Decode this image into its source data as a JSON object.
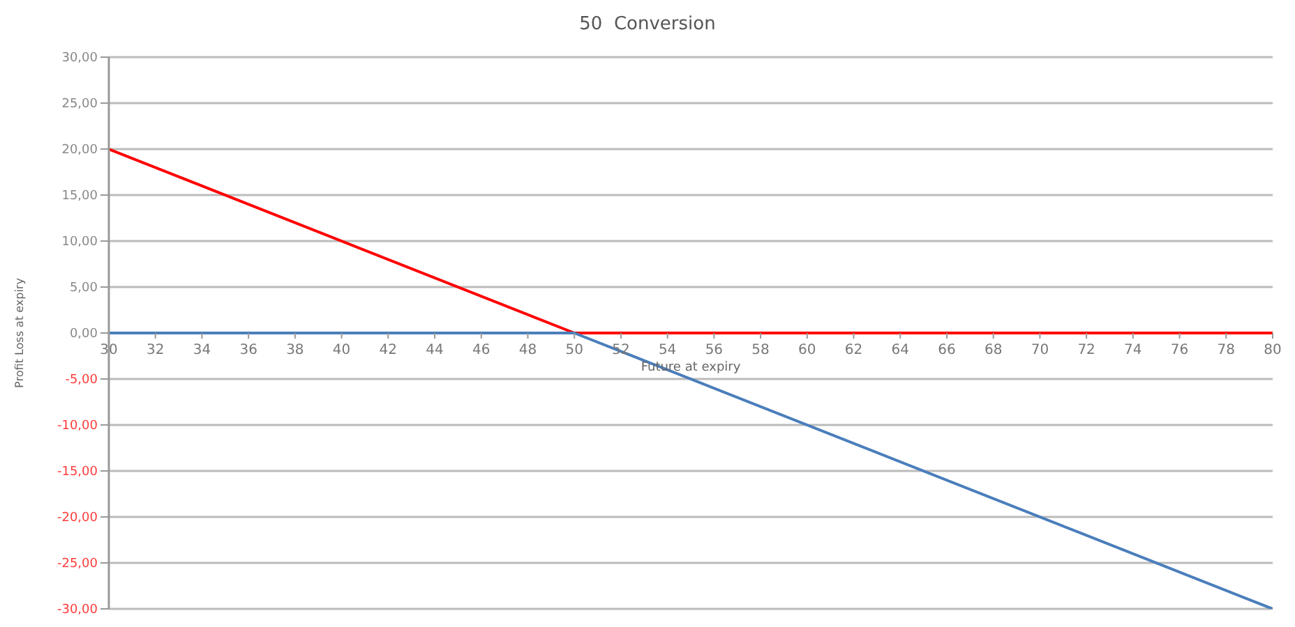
{
  "chart_data": {
    "type": "line",
    "title": "50  Conversion",
    "xlabel": "Future at expiry",
    "ylabel": "Profit Loss at expiry",
    "series": [
      {
        "color": "#ff0000",
        "x": [
          30,
          50,
          80
        ],
        "values": [
          20,
          0,
          0
        ]
      },
      {
        "color": "#4a7ebb",
        "x": [
          30,
          50,
          80
        ],
        "values": [
          0,
          0,
          -30
        ]
      }
    ],
    "xlim": [
      30,
      80
    ],
    "xticks": [
      30,
      32,
      34,
      36,
      38,
      40,
      42,
      44,
      46,
      48,
      50,
      52,
      54,
      56,
      58,
      60,
      62,
      64,
      66,
      68,
      70,
      72,
      74,
      76,
      78,
      80
    ],
    "ylim": [
      -30,
      30
    ],
    "yticks": [
      {
        "value": -30,
        "label": "-30,00"
      },
      {
        "value": -25,
        "label": "-25,00"
      },
      {
        "value": -20,
        "label": "-20,00"
      },
      {
        "value": -15,
        "label": "-15,00"
      },
      {
        "value": -10,
        "label": "-10,00"
      },
      {
        "value": -5,
        "label": "-5,00"
      },
      {
        "value": 0,
        "label": "0,00"
      },
      {
        "value": 5,
        "label": "5,00"
      },
      {
        "value": 10,
        "label": "10,00"
      },
      {
        "value": 15,
        "label": "15,00"
      },
      {
        "value": 20,
        "label": "20,00"
      },
      {
        "value": 25,
        "label": "25,00"
      },
      {
        "value": 30,
        "label": "30,00"
      }
    ],
    "grid": "y",
    "legend": false,
    "marker": "none",
    "line_style": "solid"
  }
}
